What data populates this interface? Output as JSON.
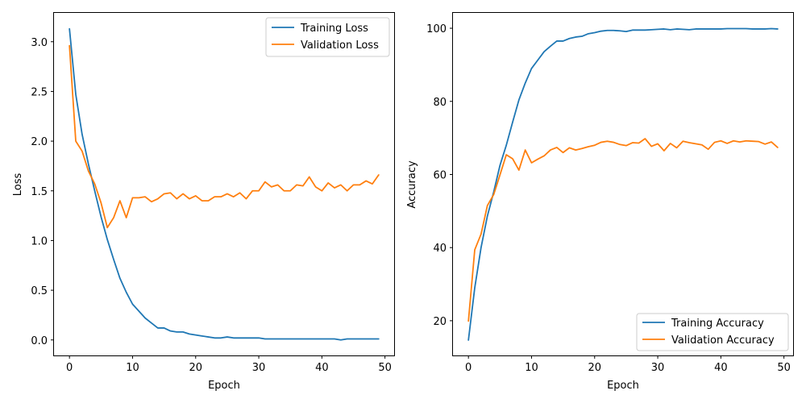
{
  "chart_data": [
    {
      "type": "line",
      "title": "",
      "xlabel": "Epoch",
      "ylabel": "Loss",
      "xlim": [
        -2.45,
        51.45
      ],
      "ylim": [
        -0.156,
        3.29
      ],
      "xticks": [
        0,
        10,
        20,
        30,
        40,
        50
      ],
      "xtick_labels": [
        "0",
        "10",
        "20",
        "30",
        "40",
        "50"
      ],
      "yticks": [
        0.0,
        0.5,
        1.0,
        1.5,
        2.0,
        2.5,
        3.0
      ],
      "ytick_labels": [
        "0.0",
        "0.5",
        "1.0",
        "1.5",
        "2.0",
        "2.5",
        "3.0"
      ],
      "grid": false,
      "legend_position": "top-right",
      "x": [
        0,
        1,
        2,
        3,
        4,
        5,
        6,
        7,
        8,
        9,
        10,
        11,
        12,
        13,
        14,
        15,
        16,
        17,
        18,
        19,
        20,
        21,
        22,
        23,
        24,
        25,
        26,
        27,
        28,
        29,
        30,
        31,
        32,
        33,
        34,
        35,
        36,
        37,
        38,
        39,
        40,
        41,
        42,
        43,
        44,
        45,
        46,
        47,
        48,
        49
      ],
      "series": [
        {
          "name": "Training Loss",
          "color": "#1f77b4",
          "values": [
            3.13,
            2.47,
            2.07,
            1.77,
            1.5,
            1.24,
            1.01,
            0.81,
            0.62,
            0.48,
            0.36,
            0.29,
            0.22,
            0.17,
            0.12,
            0.12,
            0.09,
            0.08,
            0.08,
            0.06,
            0.05,
            0.04,
            0.03,
            0.02,
            0.02,
            0.03,
            0.02,
            0.02,
            0.02,
            0.02,
            0.02,
            0.01,
            0.01,
            0.01,
            0.01,
            0.01,
            0.01,
            0.01,
            0.01,
            0.01,
            0.01,
            0.01,
            0.01,
            0.0,
            0.01,
            0.01,
            0.01,
            0.01,
            0.01,
            0.01
          ]
        },
        {
          "name": "Validation Loss",
          "color": "#ff7f0e",
          "values": [
            2.96,
            2.0,
            1.9,
            1.7,
            1.57,
            1.38,
            1.13,
            1.23,
            1.4,
            1.23,
            1.43,
            1.43,
            1.44,
            1.39,
            1.42,
            1.47,
            1.48,
            1.42,
            1.47,
            1.42,
            1.45,
            1.4,
            1.4,
            1.44,
            1.44,
            1.47,
            1.44,
            1.48,
            1.42,
            1.5,
            1.5,
            1.59,
            1.54,
            1.56,
            1.5,
            1.5,
            1.56,
            1.55,
            1.64,
            1.54,
            1.5,
            1.58,
            1.53,
            1.56,
            1.5,
            1.56,
            1.56,
            1.6,
            1.57,
            1.66
          ]
        }
      ]
    },
    {
      "type": "line",
      "title": "",
      "xlabel": "Epoch",
      "ylabel": "Accuracy",
      "xlim": [
        -2.45,
        51.45
      ],
      "ylim": [
        10.5,
        104.2
      ],
      "xticks": [
        0,
        10,
        20,
        30,
        40,
        50
      ],
      "xtick_labels": [
        "0",
        "10",
        "20",
        "30",
        "40",
        "50"
      ],
      "yticks": [
        20,
        40,
        60,
        80,
        100
      ],
      "ytick_labels": [
        "20",
        "40",
        "60",
        "80",
        "100"
      ],
      "grid": false,
      "legend_position": "bottom-right",
      "x": [
        0,
        1,
        2,
        3,
        4,
        5,
        6,
        7,
        8,
        9,
        10,
        11,
        12,
        13,
        14,
        15,
        16,
        17,
        18,
        19,
        20,
        21,
        22,
        23,
        24,
        25,
        26,
        27,
        28,
        29,
        30,
        31,
        32,
        33,
        34,
        35,
        36,
        37,
        38,
        39,
        40,
        41,
        42,
        43,
        44,
        45,
        46,
        47,
        48,
        49
      ],
      "series": [
        {
          "name": "Training Accuracy",
          "color": "#1f77b4",
          "values": [
            14.7,
            29.0,
            40.0,
            48.6,
            55.2,
            62.5,
            68.0,
            74.3,
            80.4,
            85.0,
            89.0,
            91.3,
            93.6,
            95.1,
            96.5,
            96.5,
            97.2,
            97.6,
            97.8,
            98.5,
            98.8,
            99.2,
            99.4,
            99.4,
            99.3,
            99.1,
            99.5,
            99.5,
            99.5,
            99.6,
            99.7,
            99.8,
            99.6,
            99.8,
            99.7,
            99.6,
            99.8,
            99.8,
            99.8,
            99.8,
            99.8,
            99.9,
            99.9,
            99.9,
            99.9,
            99.8,
            99.8,
            99.8,
            99.9,
            99.8
          ]
        },
        {
          "name": "Validation Accuracy",
          "color": "#ff7f0e",
          "values": [
            19.9,
            39.4,
            43.7,
            51.5,
            54.5,
            59.9,
            65.4,
            64.3,
            61.2,
            66.7,
            63.2,
            64.2,
            65.1,
            66.7,
            67.4,
            66.0,
            67.3,
            66.7,
            67.1,
            67.6,
            68.0,
            68.8,
            69.1,
            68.8,
            68.2,
            67.9,
            68.7,
            68.6,
            69.8,
            67.7,
            68.4,
            66.5,
            68.5,
            67.3,
            69.1,
            68.7,
            68.4,
            68.1,
            66.9,
            68.8,
            69.2,
            68.5,
            69.2,
            68.9,
            69.2,
            69.1,
            69.0,
            68.3,
            68.9,
            67.4
          ]
        }
      ]
    }
  ]
}
